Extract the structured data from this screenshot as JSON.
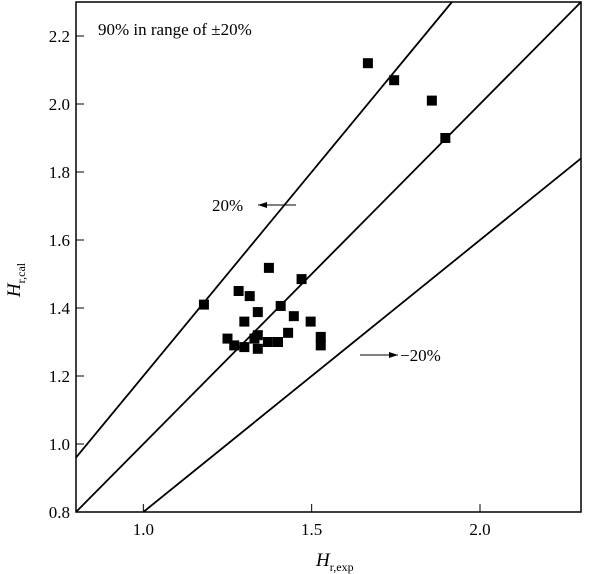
{
  "chart_data": {
    "type": "scatter",
    "title": "",
    "annotation": "90% in range of ±20%",
    "xlabel": {
      "main": "H",
      "sub": "r,exp"
    },
    "ylabel": {
      "main": "H",
      "sub": "r,cal"
    },
    "xlim": [
      0.8,
      2.3
    ],
    "ylim": [
      0.8,
      2.3
    ],
    "xticks": [
      {
        "v": 1.0,
        "label": "1.0"
      },
      {
        "v": 1.5,
        "label": "1.5"
      },
      {
        "v": 2.0,
        "label": "2.0"
      }
    ],
    "yticks": [
      {
        "v": 0.8,
        "label": "0.8"
      },
      {
        "v": 1.0,
        "label": "1.0"
      },
      {
        "v": 1.2,
        "label": "1.2"
      },
      {
        "v": 1.4,
        "label": "1.4"
      },
      {
        "v": 1.6,
        "label": "1.6"
      },
      {
        "v": 1.8,
        "label": "1.8"
      },
      {
        "v": 2.0,
        "label": "2.0"
      },
      {
        "v": 2.2,
        "label": "2.2"
      }
    ],
    "reference_lines": [
      {
        "name": "plus-20",
        "slope": 1.2,
        "label": "20%"
      },
      {
        "name": "equal",
        "slope": 1.0,
        "label": ""
      },
      {
        "name": "minus-20",
        "slope": 0.8,
        "label": "−20%"
      }
    ],
    "points": [
      [
        1.667,
        2.12
      ],
      [
        1.745,
        2.07
      ],
      [
        1.857,
        2.01
      ],
      [
        1.897,
        1.9
      ],
      [
        1.18,
        1.41
      ],
      [
        1.373,
        1.518
      ],
      [
        1.47,
        1.485
      ],
      [
        1.283,
        1.45
      ],
      [
        1.316,
        1.435
      ],
      [
        1.408,
        1.406
      ],
      [
        1.447,
        1.376
      ],
      [
        1.34,
        1.388
      ],
      [
        1.3,
        1.36
      ],
      [
        1.497,
        1.36
      ],
      [
        1.43,
        1.327
      ],
      [
        1.527,
        1.315
      ],
      [
        1.527,
        1.29
      ],
      [
        1.25,
        1.31
      ],
      [
        1.27,
        1.29
      ],
      [
        1.3,
        1.285
      ],
      [
        1.33,
        1.31
      ],
      [
        1.34,
        1.32
      ],
      [
        1.34,
        1.28
      ],
      [
        1.37,
        1.3
      ],
      [
        1.4,
        1.3
      ]
    ]
  }
}
